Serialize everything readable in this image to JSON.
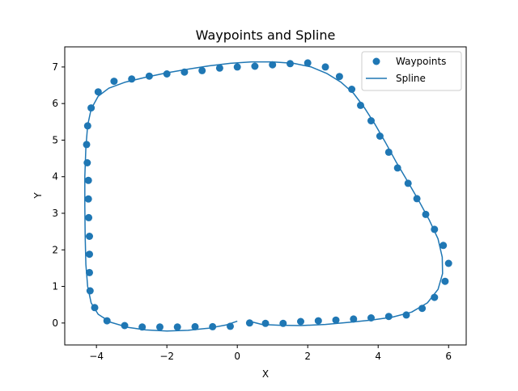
{
  "chart_data": {
    "type": "scatter",
    "title": "Waypoints and Spline",
    "xlabel": "X",
    "ylabel": "Y",
    "xlim": [
      -4.9,
      6.5
    ],
    "ylim": [
      -0.6,
      7.55
    ],
    "xticks": [
      -4,
      -2,
      0,
      2,
      4,
      6
    ],
    "yticks": [
      0,
      1,
      2,
      3,
      4,
      5,
      6,
      7
    ],
    "grid": false,
    "legend_position": "top-right",
    "color": "#1f77b4",
    "series": [
      {
        "name": "Waypoints",
        "type": "scatter",
        "points": [
          [
            0.35,
            0.0
          ],
          [
            0.8,
            -0.01
          ],
          [
            1.3,
            -0.01
          ],
          [
            1.8,
            0.04
          ],
          [
            2.3,
            0.06
          ],
          [
            2.8,
            0.08
          ],
          [
            3.3,
            0.11
          ],
          [
            3.8,
            0.14
          ],
          [
            4.3,
            0.18
          ],
          [
            4.8,
            0.22
          ],
          [
            5.25,
            0.4
          ],
          [
            5.6,
            0.7
          ],
          [
            5.9,
            1.14
          ],
          [
            6.0,
            1.63
          ],
          [
            5.85,
            2.12
          ],
          [
            5.6,
            2.56
          ],
          [
            5.35,
            2.97
          ],
          [
            5.1,
            3.4
          ],
          [
            4.85,
            3.82
          ],
          [
            4.55,
            4.24
          ],
          [
            4.3,
            4.67
          ],
          [
            4.05,
            5.11
          ],
          [
            3.8,
            5.53
          ],
          [
            3.5,
            5.95
          ],
          [
            3.25,
            6.39
          ],
          [
            2.9,
            6.74
          ],
          [
            2.5,
            7.0
          ],
          [
            2.0,
            7.11
          ],
          [
            1.5,
            7.09
          ],
          [
            1.0,
            7.06
          ],
          [
            0.5,
            7.02
          ],
          [
            0.0,
            7.0
          ],
          [
            -0.5,
            6.97
          ],
          [
            -1.0,
            6.9
          ],
          [
            -1.5,
            6.86
          ],
          [
            -2.0,
            6.81
          ],
          [
            -2.5,
            6.75
          ],
          [
            -3.0,
            6.67
          ],
          [
            -3.5,
            6.61
          ],
          [
            -3.95,
            6.32
          ],
          [
            -4.15,
            5.88
          ],
          [
            -4.25,
            5.39
          ],
          [
            -4.28,
            4.88
          ],
          [
            -4.26,
            4.38
          ],
          [
            -4.23,
            3.9
          ],
          [
            -4.23,
            3.39
          ],
          [
            -4.22,
            2.88
          ],
          [
            -4.2,
            2.37
          ],
          [
            -4.2,
            1.88
          ],
          [
            -4.2,
            1.38
          ],
          [
            -4.18,
            0.88
          ],
          [
            -4.05,
            0.42
          ],
          [
            -3.7,
            0.06
          ],
          [
            -3.2,
            -0.07
          ],
          [
            -2.7,
            -0.11
          ],
          [
            -2.2,
            -0.11
          ],
          [
            -1.7,
            -0.11
          ],
          [
            -1.2,
            -0.1
          ],
          [
            -0.7,
            -0.1
          ],
          [
            -0.2,
            -0.09
          ]
        ]
      },
      {
        "name": "Spline",
        "type": "line",
        "points": [
          [
            0.0,
            0.05
          ],
          [
            -0.3,
            -0.05
          ],
          [
            -0.8,
            -0.14
          ],
          [
            -1.4,
            -0.2
          ],
          [
            -2.0,
            -0.22
          ],
          [
            -2.6,
            -0.19
          ],
          [
            -3.1,
            -0.12
          ],
          [
            -3.6,
            0.02
          ],
          [
            -3.95,
            0.24
          ],
          [
            -4.15,
            0.55
          ],
          [
            -4.25,
            1.0
          ],
          [
            -4.3,
            1.6
          ],
          [
            -4.32,
            2.4
          ],
          [
            -4.33,
            3.2
          ],
          [
            -4.33,
            4.0
          ],
          [
            -4.3,
            4.8
          ],
          [
            -4.25,
            5.4
          ],
          [
            -4.15,
            5.85
          ],
          [
            -3.95,
            6.2
          ],
          [
            -3.65,
            6.42
          ],
          [
            -3.2,
            6.58
          ],
          [
            -2.6,
            6.72
          ],
          [
            -2.0,
            6.84
          ],
          [
            -1.4,
            6.94
          ],
          [
            -0.8,
            7.03
          ],
          [
            -0.2,
            7.1
          ],
          [
            0.4,
            7.14
          ],
          [
            1.0,
            7.14
          ],
          [
            1.6,
            7.1
          ],
          [
            2.1,
            7.0
          ],
          [
            2.55,
            6.82
          ],
          [
            2.95,
            6.58
          ],
          [
            3.3,
            6.28
          ],
          [
            3.6,
            5.9
          ],
          [
            3.9,
            5.45
          ],
          [
            4.2,
            4.95
          ],
          [
            4.5,
            4.42
          ],
          [
            4.85,
            3.85
          ],
          [
            5.15,
            3.35
          ],
          [
            5.45,
            2.82
          ],
          [
            5.7,
            2.3
          ],
          [
            5.82,
            1.8
          ],
          [
            5.83,
            1.35
          ],
          [
            5.7,
            0.92
          ],
          [
            5.4,
            0.55
          ],
          [
            4.95,
            0.3
          ],
          [
            4.4,
            0.16
          ],
          [
            3.8,
            0.08
          ],
          [
            3.2,
            0.02
          ],
          [
            2.5,
            -0.04
          ],
          [
            1.8,
            -0.07
          ],
          [
            1.2,
            -0.06
          ],
          [
            0.7,
            -0.04
          ],
          [
            0.3,
            0.06
          ]
        ]
      }
    ]
  }
}
